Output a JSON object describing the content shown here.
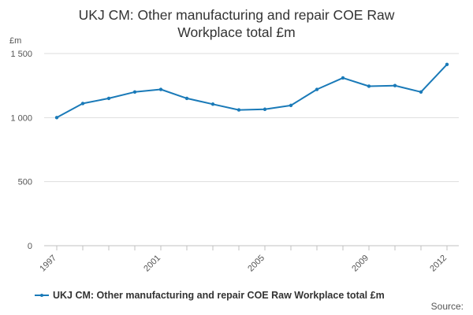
{
  "chart_data": {
    "type": "line",
    "title_line1": "UKJ CM: Other manufacturing and repair COE Raw",
    "title_line2": "Workplace total £m",
    "ylabel": "£m",
    "xlabel": "",
    "ylim": [
      0,
      1500
    ],
    "yticks": [
      0,
      500,
      1000,
      1500
    ],
    "ytick_labels": [
      "0",
      "500",
      "1 000",
      "1 500"
    ],
    "xtick_labels": [
      "1997",
      "2001",
      "2005",
      "2009",
      "2012"
    ],
    "grid": true,
    "legend_position": "bottom-left",
    "series": [
      {
        "name": "UKJ CM: Other manufacturing and repair COE Raw Workplace total £m",
        "color": "#1a7ab8",
        "x": [
          1997,
          1998,
          1999,
          2000,
          2001,
          2002,
          2003,
          2004,
          2005,
          2006,
          2007,
          2008,
          2009,
          2010,
          2011,
          2012
        ],
        "values": [
          1000,
          1110,
          1150,
          1200,
          1220,
          1150,
          1105,
          1060,
          1065,
          1095,
          1220,
          1310,
          1245,
          1250,
          1200,
          1415
        ]
      }
    ]
  },
  "source_label": "Source:"
}
